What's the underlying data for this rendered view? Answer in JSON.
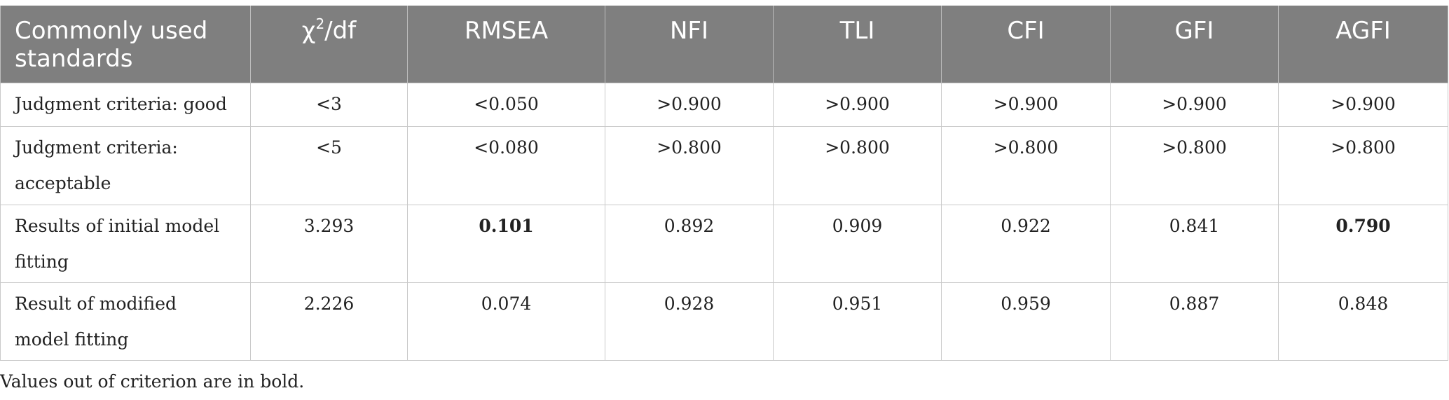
{
  "table": {
    "header": {
      "col0": "Commonly used standards",
      "chi_symbol": "χ",
      "chi_sup": "2",
      "chi_rest": "/df",
      "col2": "RMSEA",
      "col3": "NFI",
      "col4": "TLI",
      "col5": "CFI",
      "col6": "GFI",
      "col7": "AGFI"
    },
    "rows": [
      {
        "label": "Judgment criteria: good",
        "cells": [
          "<3",
          "<0.050",
          ">0.900",
          ">0.900",
          ">0.900",
          ">0.900",
          ">0.900"
        ],
        "bold": [
          false,
          false,
          false,
          false,
          false,
          false,
          false
        ]
      },
      {
        "label": "Judgment criteria: acceptable",
        "cells": [
          "<5",
          "<0.080",
          ">0.800",
          ">0.800",
          ">0.800",
          ">0.800",
          ">0.800"
        ],
        "bold": [
          false,
          false,
          false,
          false,
          false,
          false,
          false
        ]
      },
      {
        "label": "Results of initial model fitting",
        "cells": [
          "3.293",
          "0.101",
          "0.892",
          "0.909",
          "0.922",
          "0.841",
          "0.790"
        ],
        "bold": [
          false,
          true,
          false,
          false,
          false,
          false,
          true
        ]
      },
      {
        "label": "Result of modified model fitting",
        "cells": [
          "2.226",
          "0.074",
          "0.928",
          "0.951",
          "0.959",
          "0.887",
          "0.848"
        ],
        "bold": [
          false,
          false,
          false,
          false,
          false,
          false,
          false
        ]
      }
    ]
  },
  "footnote": "Values out of criterion are in bold.",
  "colors": {
    "header_background": "#7f7f7f",
    "header_text": "#ffffff",
    "border": "#c9c9c9",
    "body_text": "#222222"
  }
}
